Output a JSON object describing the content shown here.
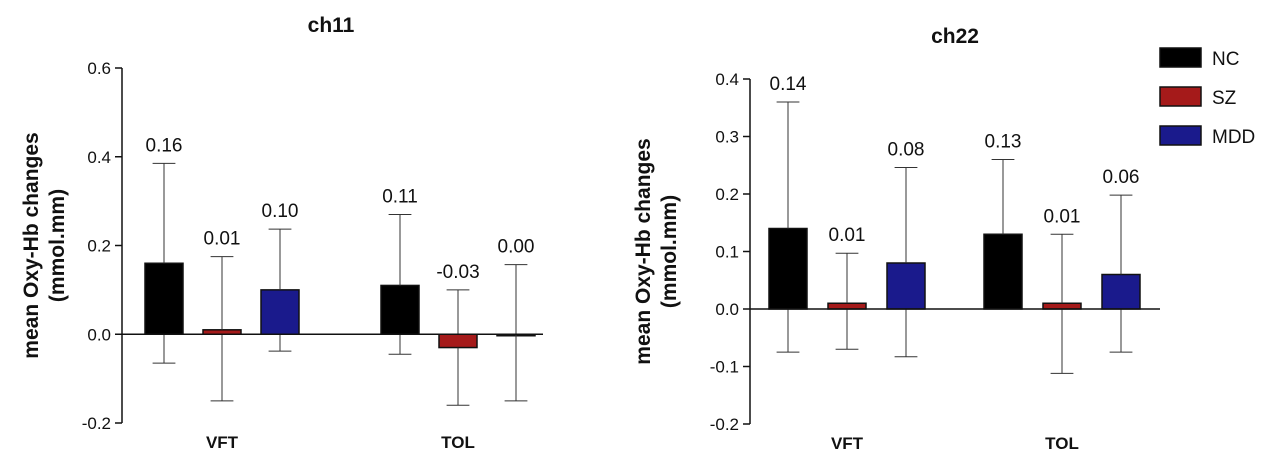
{
  "chart_data": [
    {
      "type": "bar",
      "title": "ch11",
      "ylabel": "mean Oxy-Hb changes\n(mmol.mm)",
      "categories": [
        "VFT",
        "TOL"
      ],
      "ylim": [
        -0.2,
        0.6
      ],
      "yticks": [
        "-0.2",
        "0.0",
        "0.2",
        "0.4",
        "0.6"
      ],
      "series": [
        {
          "name": "NC",
          "color": "#000000",
          "values": [
            0.16,
            0.11
          ],
          "labels": [
            "0.16",
            "0.11"
          ],
          "err_upper": [
            0.385,
            0.27
          ],
          "err_lower": [
            -0.065,
            -0.045
          ]
        },
        {
          "name": "SZ",
          "color": "#a51a1a",
          "values": [
            0.01,
            -0.03
          ],
          "labels": [
            "0.01",
            "-0.03"
          ],
          "err_upper": [
            0.175,
            0.1
          ],
          "err_lower": [
            -0.15,
            -0.16
          ]
        },
        {
          "name": "MDD",
          "color": "#1a1a8c",
          "values": [
            0.1,
            0.0
          ],
          "labels": [
            "0.10",
            "0.00"
          ],
          "err_upper": [
            0.237,
            0.157
          ],
          "err_lower": [
            -0.038,
            -0.15
          ]
        }
      ]
    },
    {
      "type": "bar",
      "title": "ch22",
      "ylabel": "mean Oxy-Hb changes\n(mmol.mm)",
      "categories": [
        "VFT",
        "TOL"
      ],
      "ylim": [
        -0.2,
        0.4
      ],
      "yticks": [
        "-0.2",
        "-0.1",
        "0.0",
        "0.1",
        "0.2",
        "0.3",
        "0.4"
      ],
      "series": [
        {
          "name": "NC",
          "color": "#000000",
          "values": [
            0.14,
            0.13
          ],
          "labels": [
            "0.14",
            "0.13"
          ],
          "err_upper": [
            0.36,
            0.26
          ],
          "err_lower": [
            -0.075,
            null
          ]
        },
        {
          "name": "SZ",
          "color": "#a51a1a",
          "values": [
            0.01,
            0.01
          ],
          "labels": [
            "0.01",
            "0.01"
          ],
          "err_upper": [
            0.097,
            0.13
          ],
          "err_lower": [
            -0.07,
            -0.112
          ]
        },
        {
          "name": "MDD",
          "color": "#1a1a8c",
          "values": [
            0.08,
            0.06
          ],
          "labels": [
            "0.08",
            "0.06"
          ],
          "err_upper": [
            0.246,
            0.198
          ],
          "err_lower": [
            -0.083,
            -0.075
          ]
        }
      ]
    }
  ],
  "legend": {
    "placement": "top-right",
    "items": [
      {
        "name": "NC",
        "color": "#000000"
      },
      {
        "name": "SZ",
        "color": "#a51a1a"
      },
      {
        "name": "MDD",
        "color": "#1a1a8c"
      }
    ]
  }
}
